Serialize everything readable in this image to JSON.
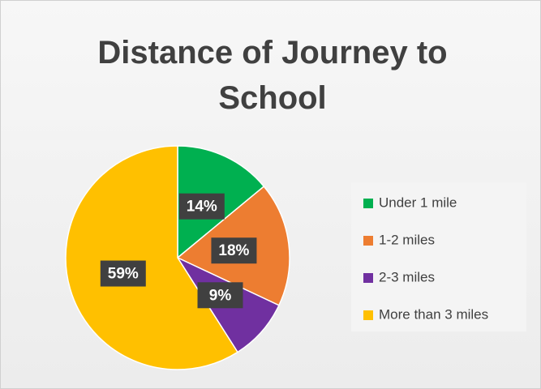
{
  "chart_data": {
    "type": "pie",
    "title": "Distance of Journey to School",
    "categories": [
      "Under 1 mile",
      "1-2 miles",
      "2-3 miles",
      "More than 3 miles"
    ],
    "values": [
      14,
      18,
      9,
      59
    ],
    "value_labels": [
      "14%",
      "18%",
      "9%",
      "59%"
    ],
    "colors": [
      "#00b050",
      "#ed7d31",
      "#7030a0",
      "#ffc000"
    ],
    "legend": "right"
  }
}
